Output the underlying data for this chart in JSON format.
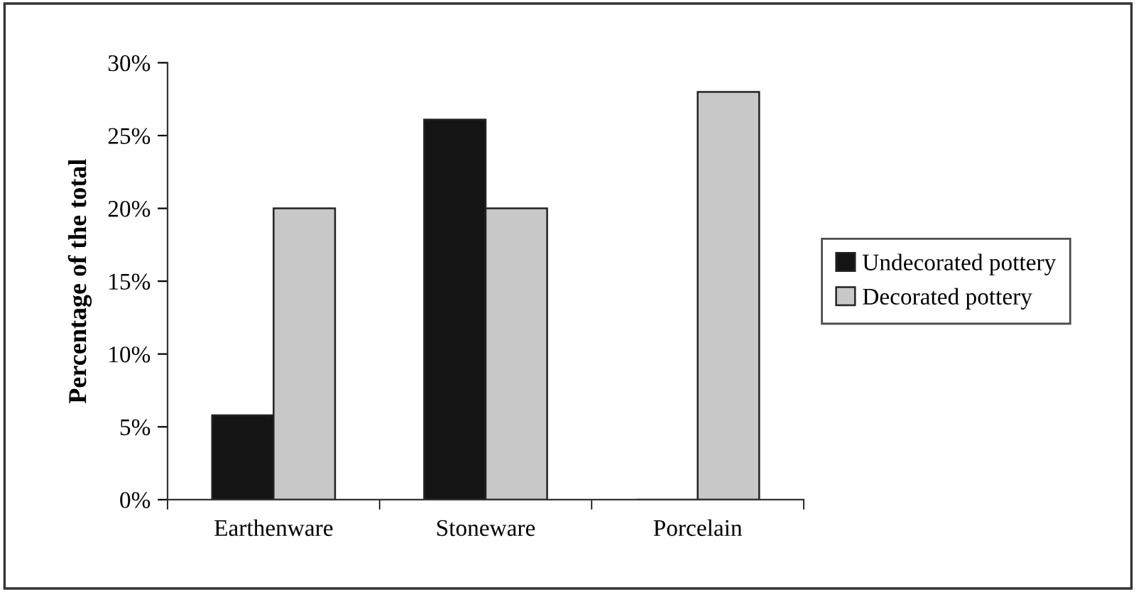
{
  "chart_data": {
    "type": "bar",
    "ylabel": "Percentage of the total",
    "categories": [
      "Earthenware",
      "Stoneware",
      "Porcelain"
    ],
    "series": [
      {
        "name": "Undecorated pottery",
        "color": "#141414",
        "values": [
          5.8,
          26.1,
          0
        ]
      },
      {
        "name": "Decorated pottery",
        "color": "#c8c8c8",
        "values": [
          20,
          20,
          28
        ]
      }
    ],
    "ylim": [
      0,
      30
    ],
    "yticks": [
      {
        "value": 0,
        "label": "0%"
      },
      {
        "value": 5,
        "label": "5%"
      },
      {
        "value": 10,
        "label": "10%"
      },
      {
        "value": 15,
        "label": "15%"
      },
      {
        "value": 20,
        "label": "20%"
      },
      {
        "value": 25,
        "label": "25%"
      },
      {
        "value": 30,
        "label": "30%"
      }
    ],
    "grid": false,
    "legend": "right"
  }
}
